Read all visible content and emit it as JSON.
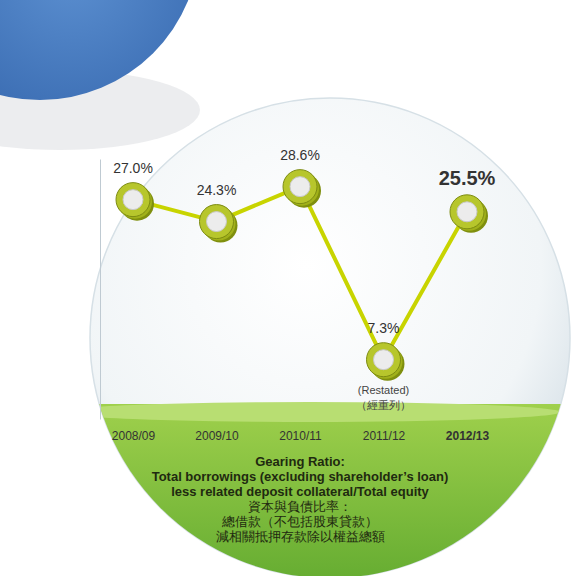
{
  "chart_data": {
    "type": "line",
    "title": "Gearing Ratio:",
    "subtitle": [
      "Total borrowings (excluding shareholder’s loan)",
      "less related deposit collateral/Total equity",
      "資本與負債比率：",
      "總借款（不包括股東貸款）",
      "減相關抵押存款除以權益總額"
    ],
    "categories": [
      "2008/09",
      "2009/10",
      "2010/11",
      "2011/12",
      "2012/13"
    ],
    "values": [
      27.0,
      24.3,
      28.6,
      7.3,
      25.5
    ],
    "value_labels": [
      "27.0%",
      "24.3%",
      "28.6%",
      "7.3%",
      "25.5%"
    ],
    "data_labels": true,
    "color": "#c8d400",
    "marker": "coin",
    "ylim": [
      0,
      32
    ],
    "yticks": [],
    "tick_labels": "x",
    "annotations": [
      {
        "category": "2011/12",
        "lines": [
          "(Restated)",
          "（經重列）"
        ]
      }
    ]
  }
}
